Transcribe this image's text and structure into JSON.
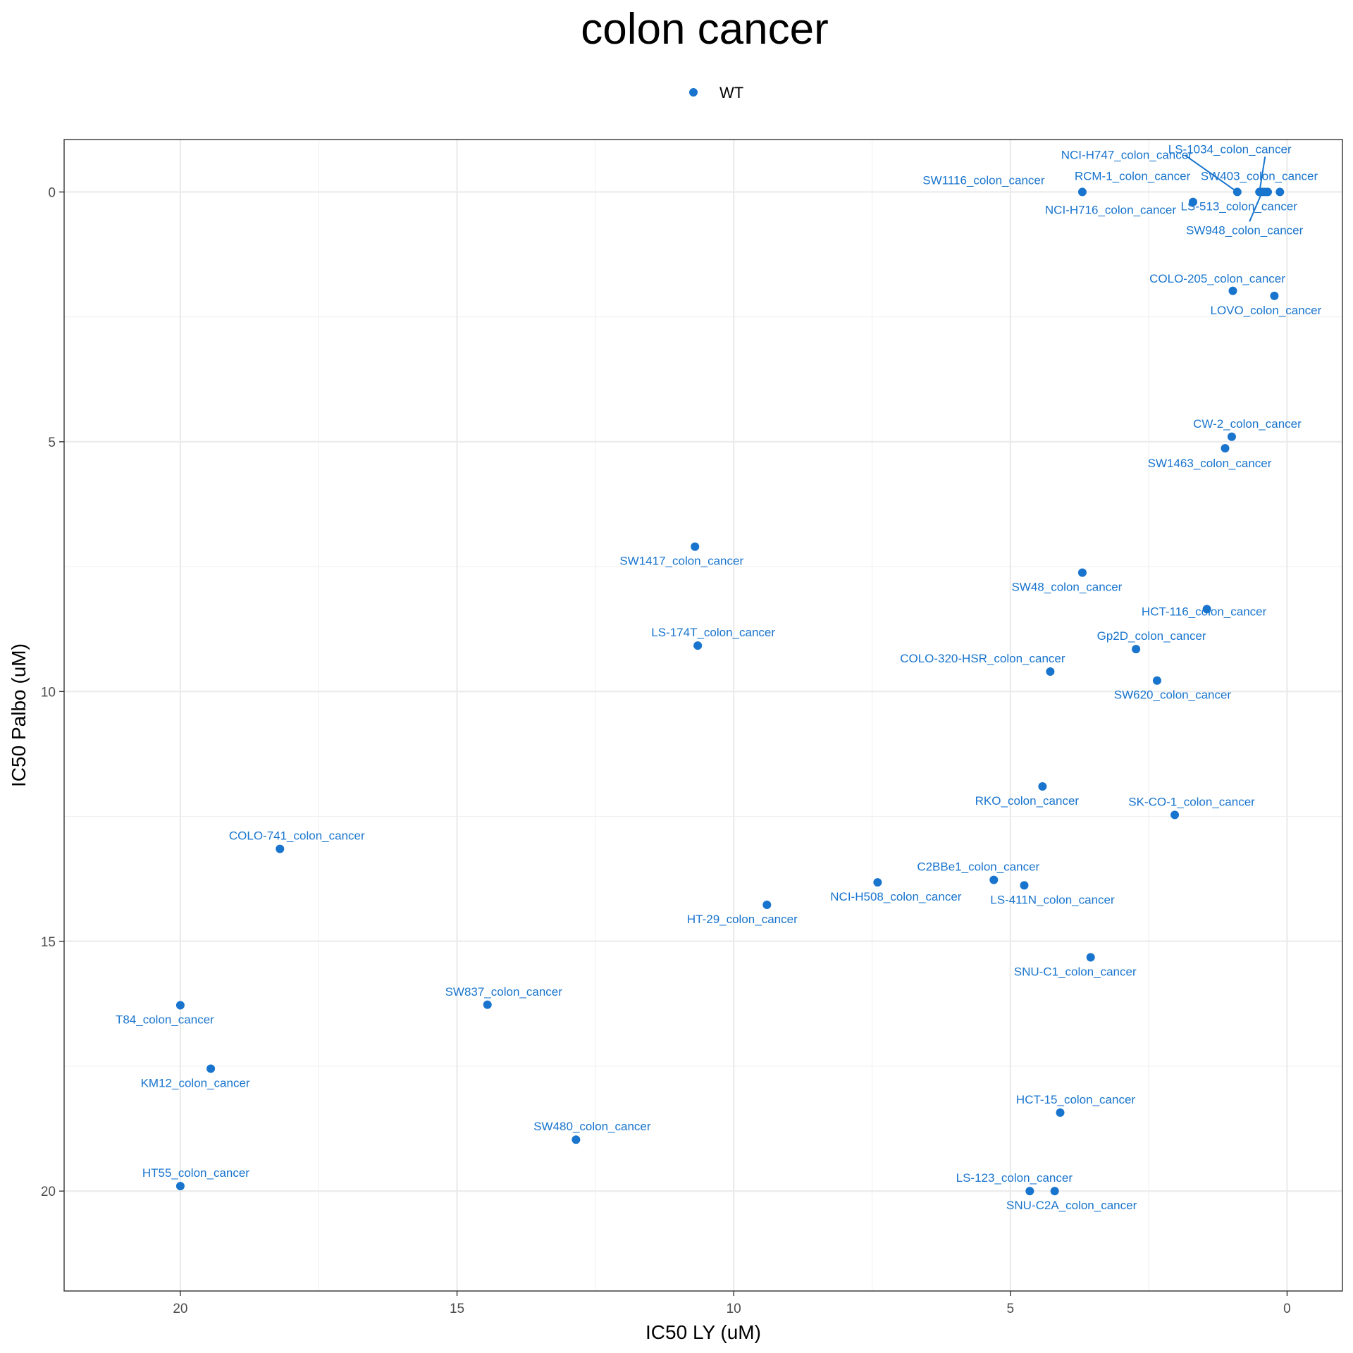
{
  "chart_data": {
    "type": "scatter",
    "title": "colon cancer",
    "xlabel": "IC50 LY (uM)",
    "ylabel": "IC50 Palbo (uM)",
    "xlim": [
      22.1,
      -1.0
    ],
    "ylim": [
      -1.05,
      22.0
    ],
    "x_reversed": true,
    "y_reversed": true,
    "xticks": [
      20,
      15,
      10,
      5,
      0
    ],
    "yticks": [
      0,
      5,
      10,
      15,
      20
    ],
    "grid": true,
    "legend_position": "top",
    "point_color": "#1874CD",
    "series": [
      {
        "name": "WT",
        "points": [
          {
            "label": "NCI-H747_colon_cancer",
            "x": 0.9,
            "y": 0.0
          },
          {
            "label": "LS-1034_colon_cancer",
            "x": 0.5,
            "y": 0.0
          },
          {
            "label": "SW1116_colon_cancer",
            "x": 3.7,
            "y": 0.0
          },
          {
            "label": "RCM-1_colon_cancer",
            "x": 0.4,
            "y": 0.0
          },
          {
            "label": "SW403_colon_cancer",
            "x": 0.35,
            "y": 0.0
          },
          {
            "label": "LS-513_colon_cancer",
            "x": 0.13,
            "y": 0.0
          },
          {
            "label": "NCI-H716_colon_cancer",
            "x": 1.7,
            "y": 0.2
          },
          {
            "label": "SW948_colon_cancer",
            "x": 0.45,
            "y": 0.0
          },
          {
            "label": "COLO-205_colon_cancer",
            "x": 0.98,
            "y": 1.98
          },
          {
            "label": "LOVO_colon_cancer",
            "x": 0.23,
            "y": 2.08
          },
          {
            "label": "CW-2_colon_cancer",
            "x": 1.0,
            "y": 4.9
          },
          {
            "label": "SW1463_colon_cancer",
            "x": 1.12,
            "y": 5.13
          },
          {
            "label": "SW1417_colon_cancer",
            "x": 10.7,
            "y": 7.1
          },
          {
            "label": "SW48_colon_cancer",
            "x": 3.7,
            "y": 7.62
          },
          {
            "label": "HCT-116_colon_cancer",
            "x": 1.45,
            "y": 8.35
          },
          {
            "label": "LS-174T_colon_cancer",
            "x": 10.65,
            "y": 9.08
          },
          {
            "label": "Gp2D_colon_cancer",
            "x": 2.73,
            "y": 9.15
          },
          {
            "label": "COLO-320-HSR_colon_cancer",
            "x": 4.28,
            "y": 9.6
          },
          {
            "label": "SW620_colon_cancer",
            "x": 2.35,
            "y": 9.78
          },
          {
            "label": "RKO_colon_cancer",
            "x": 4.42,
            "y": 11.9
          },
          {
            "label": "SK-CO-1_colon_cancer",
            "x": 2.03,
            "y": 12.47
          },
          {
            "label": "COLO-741_colon_cancer",
            "x": 18.2,
            "y": 13.15
          },
          {
            "label": "NCI-H508_colon_cancer",
            "x": 7.4,
            "y": 13.82
          },
          {
            "label": "C2BBe1_colon_cancer",
            "x": 5.3,
            "y": 13.77
          },
          {
            "label": "LS-411N_colon_cancer",
            "x": 4.75,
            "y": 13.88
          },
          {
            "label": "HT-29_colon_cancer",
            "x": 9.4,
            "y": 14.27
          },
          {
            "label": "SNU-C1_colon_cancer",
            "x": 3.55,
            "y": 15.32
          },
          {
            "label": "T84_colon_cancer",
            "x": 20.0,
            "y": 16.28
          },
          {
            "label": "SW837_colon_cancer",
            "x": 14.45,
            "y": 16.27
          },
          {
            "label": "KM12_colon_cancer",
            "x": 19.45,
            "y": 17.55
          },
          {
            "label": "HCT-15_colon_cancer",
            "x": 4.1,
            "y": 18.43
          },
          {
            "label": "SW480_colon_cancer",
            "x": 12.85,
            "y": 18.97
          },
          {
            "label": "HT55_colon_cancer",
            "x": 20.0,
            "y": 19.9
          },
          {
            "label": "LS-123_colon_cancer",
            "x": 4.65,
            "y": 20.0
          },
          {
            "label": "SNU-C2A_colon_cancer",
            "x": 4.2,
            "y": 20.0
          }
        ]
      }
    ]
  }
}
